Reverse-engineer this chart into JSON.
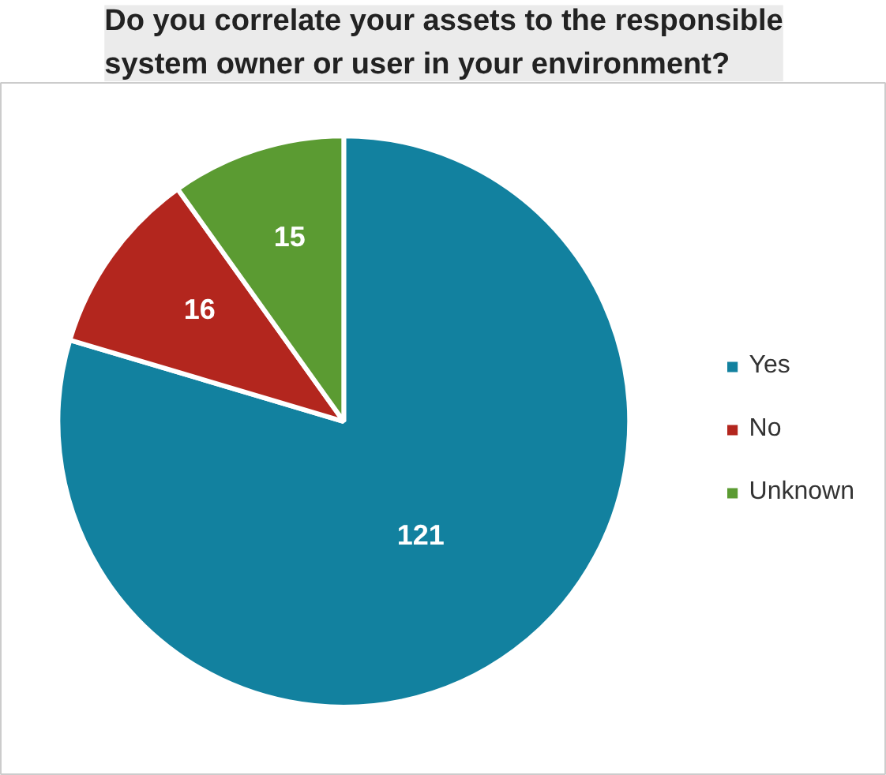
{
  "chart_data": {
    "type": "pie",
    "title": "Do you correlate your assets to the responsible system owner or user in your environment?",
    "categories": [
      "Yes",
      "No",
      "Unknown"
    ],
    "values": [
      121,
      16,
      15
    ],
    "colors": [
      "#12819f",
      "#b3261e",
      "#5b9b32"
    ],
    "data_labels": true,
    "legend": "right"
  }
}
